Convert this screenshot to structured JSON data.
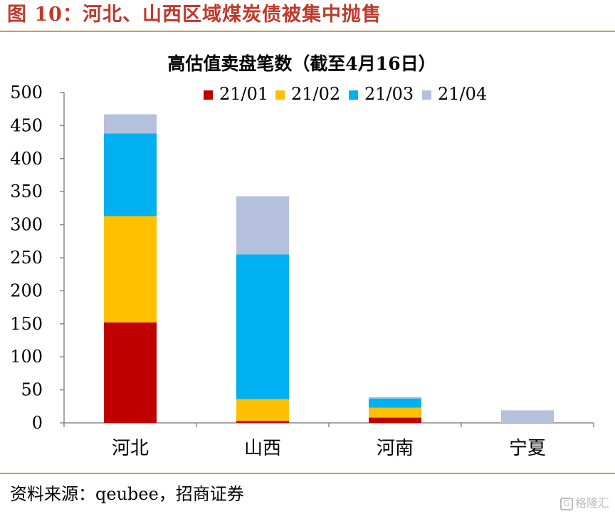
{
  "figure_title": "图 10：河北、山西区域煤炭债被集中抛售",
  "source_text": "资料来源：qeubee，招商证券",
  "watermark_text": "格隆汇",
  "colors": {
    "accent_title": "#c0392b",
    "rule": "#c8a04a",
    "series": [
      "#c00000",
      "#ffc000",
      "#00b0f0",
      "#b4c0dc"
    ]
  },
  "chart_data": {
    "type": "bar",
    "stacked": true,
    "title": "高估值卖盘笔数（截至4月16日）",
    "categories": [
      "河北",
      "山西",
      "河南",
      "宁夏"
    ],
    "series": [
      {
        "name": "21/01",
        "values": [
          152,
          3,
          8,
          0
        ]
      },
      {
        "name": "21/02",
        "values": [
          161,
          33,
          15,
          0
        ]
      },
      {
        "name": "21/03",
        "values": [
          125,
          219,
          14,
          0
        ]
      },
      {
        "name": "21/04",
        "values": [
          29,
          88,
          2,
          19
        ]
      }
    ],
    "ylim": [
      0,
      500
    ],
    "yticks": [
      0,
      50,
      100,
      150,
      200,
      250,
      300,
      350,
      400,
      450,
      500
    ],
    "xlabel": "",
    "ylabel": "",
    "grid": false,
    "legend_position": "top"
  }
}
